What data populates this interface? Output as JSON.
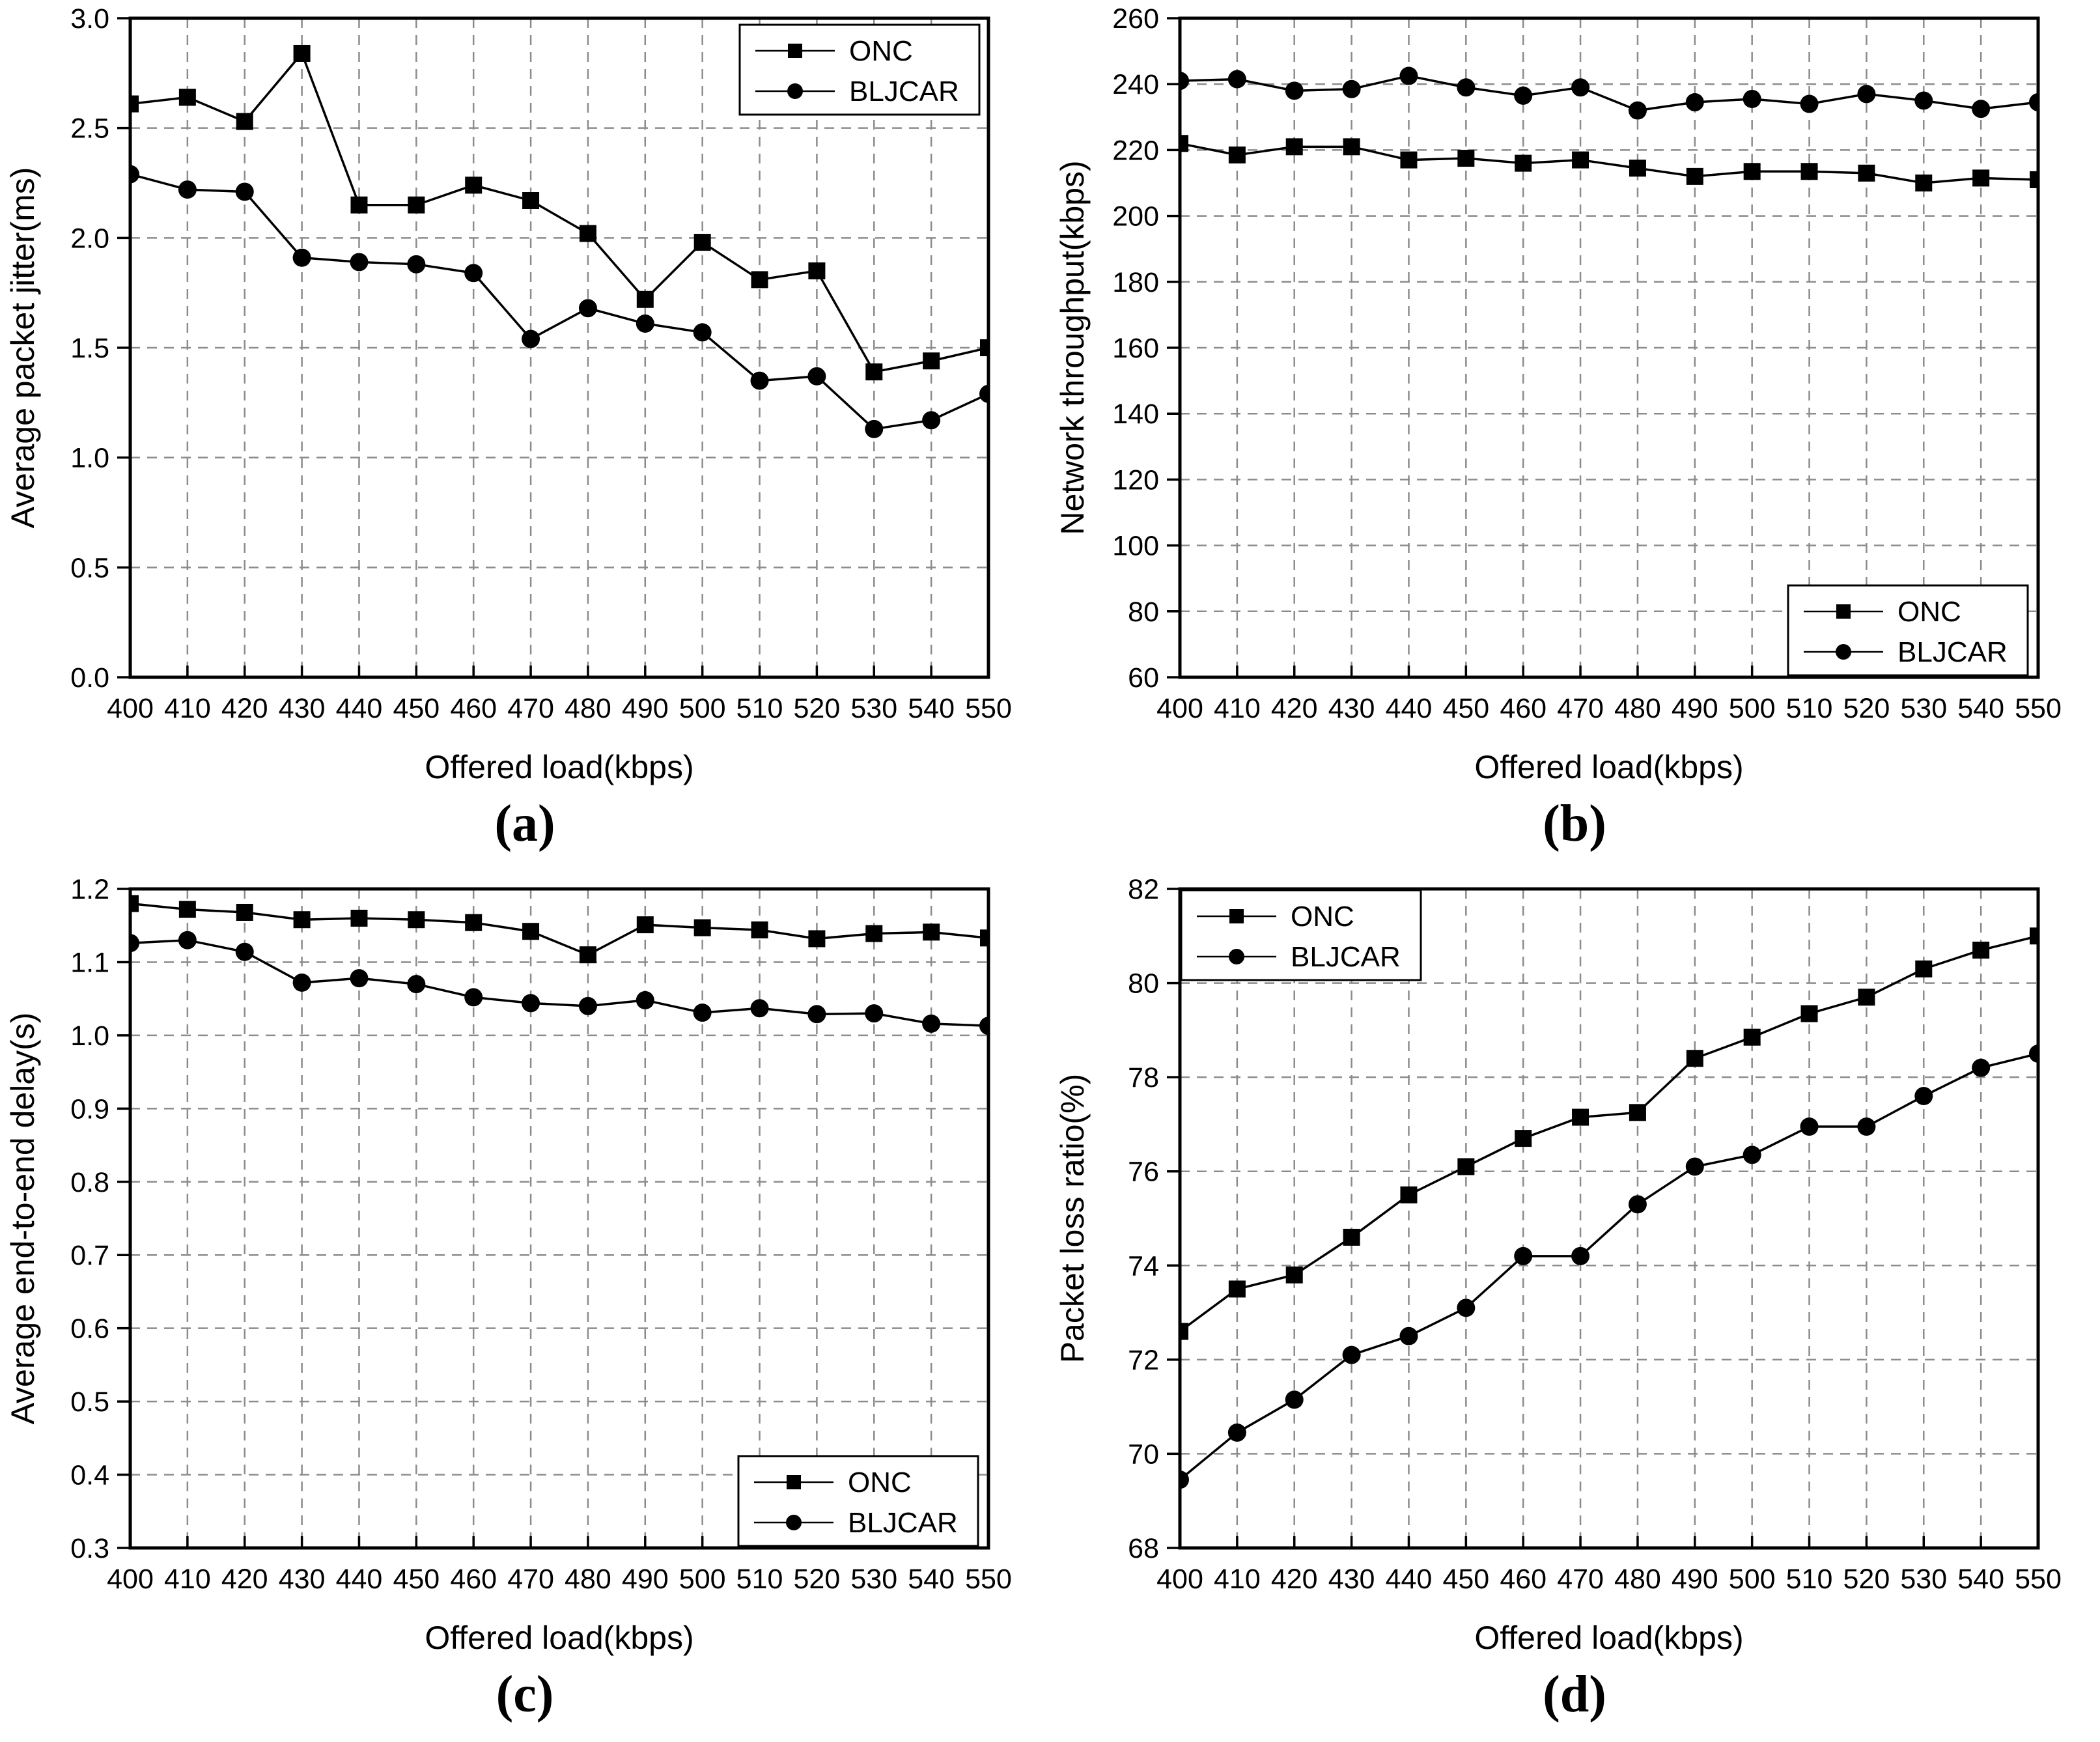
{
  "figure": {
    "background": "#ffffff",
    "foreground": "#000000",
    "grid_color": "#8c8c8c",
    "series_names": [
      "ONC",
      "BLJCAR"
    ]
  },
  "chart_data": [
    {
      "id": "a",
      "type": "line",
      "caption": "(a)",
      "xlabel": "Offered load(kbps)",
      "ylabel": "Average packet jitter(ms)",
      "x": [
        400,
        410,
        420,
        430,
        440,
        450,
        460,
        470,
        480,
        490,
        500,
        510,
        520,
        530,
        540,
        550
      ],
      "xlim": [
        400,
        550
      ],
      "ylim": [
        0.0,
        3.0
      ],
      "yticks": [
        0.0,
        0.5,
        1.0,
        1.5,
        2.0,
        2.5,
        3.0
      ],
      "ytick_labels": [
        "0.0",
        "0.5",
        "1.0",
        "1.5",
        "2.0",
        "2.5",
        "3.0"
      ],
      "grid": true,
      "legend": {
        "position": "top-right"
      },
      "series": [
        {
          "name": "ONC",
          "marker": "square",
          "values": [
            2.61,
            2.64,
            2.53,
            2.84,
            2.15,
            2.15,
            2.24,
            2.17,
            2.02,
            1.72,
            1.98,
            1.81,
            1.85,
            1.39,
            1.44,
            1.5
          ]
        },
        {
          "name": "BLJCAR",
          "marker": "circle",
          "values": [
            2.29,
            2.22,
            2.21,
            1.91,
            1.89,
            1.88,
            1.84,
            1.54,
            1.68,
            1.61,
            1.57,
            1.35,
            1.37,
            1.13,
            1.17,
            1.29
          ]
        }
      ]
    },
    {
      "id": "b",
      "type": "line",
      "caption": "(b)",
      "xlabel": "Offered load(kbps)",
      "ylabel": "Network throughput(kbps)",
      "x": [
        400,
        410,
        420,
        430,
        440,
        450,
        460,
        470,
        480,
        490,
        500,
        510,
        520,
        530,
        540,
        550
      ],
      "xlim": [
        400,
        550
      ],
      "ylim": [
        60,
        260
      ],
      "yticks": [
        60,
        80,
        100,
        120,
        140,
        160,
        180,
        200,
        220,
        240,
        260
      ],
      "ytick_labels": [
        "60",
        "80",
        "100",
        "120",
        "140",
        "160",
        "180",
        "200",
        "220",
        "240",
        "260"
      ],
      "grid": true,
      "legend": {
        "position": "bottom-right"
      },
      "series": [
        {
          "name": "ONC",
          "marker": "square",
          "values": [
            222,
            218.5,
            221,
            221,
            217,
            217.5,
            216,
            217,
            214.5,
            212,
            213.5,
            213.5,
            213,
            210,
            211.5,
            211
          ]
        },
        {
          "name": "BLJCAR",
          "marker": "circle",
          "values": [
            241,
            241.5,
            238,
            238.5,
            242.5,
            239,
            236.5,
            239,
            232,
            234.5,
            235.5,
            234,
            237,
            235,
            232.5,
            234.5
          ]
        }
      ]
    },
    {
      "id": "c",
      "type": "line",
      "caption": "(c)",
      "xlabel": "Offered load(kbps)",
      "ylabel": "Average end-to-end delay(s)",
      "x": [
        400,
        410,
        420,
        430,
        440,
        450,
        460,
        470,
        480,
        490,
        500,
        510,
        520,
        530,
        540,
        550
      ],
      "xlim": [
        400,
        550
      ],
      "ylim": [
        0.3,
        1.2
      ],
      "yticks": [
        0.3,
        0.4,
        0.5,
        0.6,
        0.7,
        0.8,
        0.9,
        1.0,
        1.1,
        1.2
      ],
      "ytick_labels": [
        "0.3",
        "0.4",
        "0.5",
        "0.6",
        "0.7",
        "0.8",
        "0.9",
        "1.0",
        "1.1",
        "1.2"
      ],
      "grid": true,
      "legend": {
        "position": "bottom-right"
      },
      "series": [
        {
          "name": "ONC",
          "marker": "square",
          "values": [
            1.18,
            1.172,
            1.168,
            1.158,
            1.16,
            1.158,
            1.154,
            1.142,
            1.11,
            1.151,
            1.147,
            1.144,
            1.132,
            1.139,
            1.141,
            1.133
          ]
        },
        {
          "name": "BLJCAR",
          "marker": "circle",
          "values": [
            1.126,
            1.13,
            1.114,
            1.072,
            1.078,
            1.07,
            1.052,
            1.044,
            1.04,
            1.048,
            1.031,
            1.037,
            1.029,
            1.03,
            1.016,
            1.013
          ]
        }
      ]
    },
    {
      "id": "d",
      "type": "line",
      "caption": "(d)",
      "xlabel": "Offered load(kbps)",
      "ylabel": "Packet loss ratio(%)",
      "x": [
        400,
        410,
        420,
        430,
        440,
        450,
        460,
        470,
        480,
        490,
        500,
        510,
        520,
        530,
        540,
        550
      ],
      "xlim": [
        400,
        550
      ],
      "ylim": [
        68,
        82
      ],
      "yticks": [
        68,
        70,
        72,
        74,
        76,
        78,
        80,
        82
      ],
      "ytick_labels": [
        "68",
        "70",
        "72",
        "74",
        "76",
        "78",
        "80",
        "82"
      ],
      "grid": true,
      "legend": {
        "position": "top-left"
      },
      "series": [
        {
          "name": "ONC",
          "marker": "square",
          "values": [
            72.6,
            73.5,
            73.8,
            74.6,
            75.5,
            76.1,
            76.7,
            77.15,
            77.25,
            78.4,
            78.85,
            79.35,
            79.7,
            80.3,
            80.7,
            81.0
          ]
        },
        {
          "name": "BLJCAR",
          "marker": "circle",
          "values": [
            69.45,
            70.45,
            71.15,
            72.1,
            72.5,
            73.1,
            74.2,
            74.2,
            75.3,
            76.1,
            76.35,
            76.95,
            76.95,
            77.6,
            78.2,
            78.5
          ]
        }
      ]
    }
  ]
}
